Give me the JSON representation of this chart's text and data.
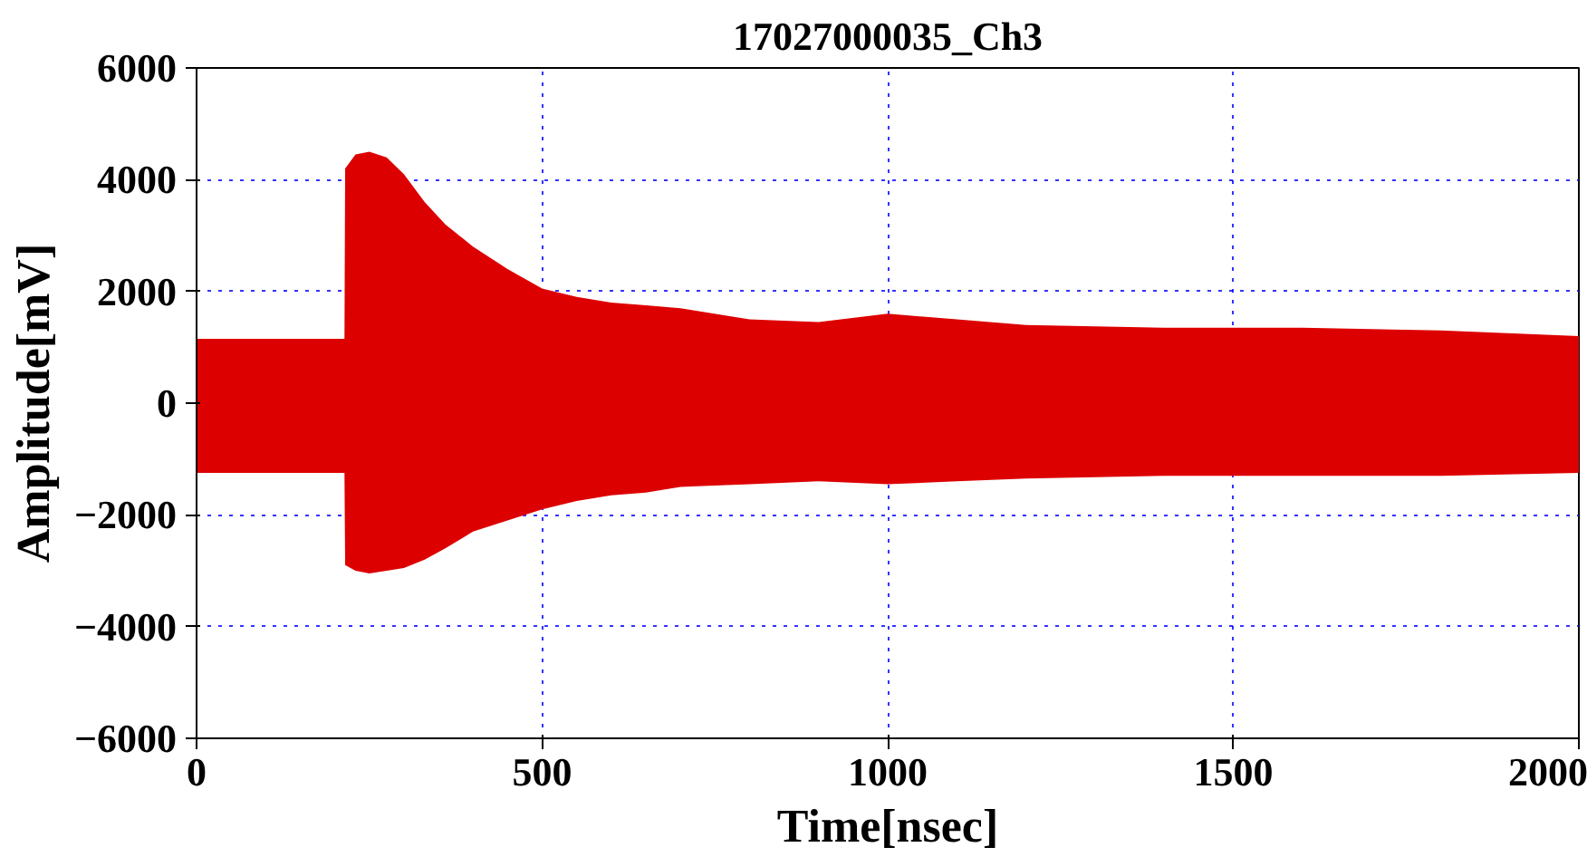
{
  "chart_data": {
    "type": "area",
    "title": "17027000035_Ch3",
    "xlabel": "Time[nsec]",
    "ylabel": "Amplitude[mV]",
    "x": [
      0,
      214,
      215,
      230,
      250,
      275,
      300,
      330,
      360,
      400,
      450,
      500,
      550,
      600,
      650,
      700,
      800,
      900,
      1000,
      1100,
      1200,
      1400,
      1600,
      1800,
      2000
    ],
    "series": [
      {
        "color": "#dd0000",
        "values": [
          1150,
          1150,
          4200,
          4450,
          4500,
          4400,
          4100,
          3600,
          3200,
          2800,
          2400,
          2050,
          1900,
          1800,
          1750,
          1700,
          1500,
          1450,
          1600,
          1500,
          1400,
          1350,
          1350,
          1300,
          1200
        ]
      },
      {
        "color": "#dd0000",
        "values": [
          -1250,
          -1250,
          -2900,
          -3000,
          -3050,
          -3000,
          -2950,
          -2800,
          -2600,
          -2300,
          -2100,
          -1900,
          -1750,
          -1650,
          -1600,
          -1500,
          -1450,
          -1400,
          -1450,
          -1400,
          -1350,
          -1300,
          -1300,
          -1300,
          -1250
        ]
      }
    ],
    "xlim": [
      0,
      2000
    ],
    "ylim": [
      -6000,
      6000
    ],
    "xticks": [
      0,
      500,
      1000,
      1500,
      2000
    ],
    "yticks": [
      -6000,
      -4000,
      -2000,
      0,
      2000,
      4000,
      6000
    ],
    "grid": true
  }
}
